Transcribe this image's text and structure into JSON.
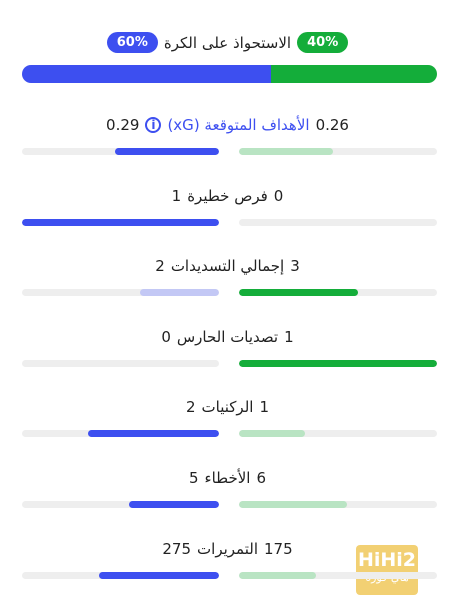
{
  "possession": {
    "label": "الاستحواذ على الكرة",
    "left_value": 60,
    "left_label": "60%",
    "right_value": 40,
    "right_label": "40%",
    "left_color": "#3d4ff0",
    "right_color": "#14ad3a"
  },
  "stats": [
    {
      "label": "الأهداف المتوقعة (xG)",
      "label_color": "#3d4ff0",
      "info_icon": true,
      "right": 0.26,
      "left": 0.29,
      "left_color": "#3d4ff0",
      "right_color": "#b9e4c3"
    },
    {
      "label": "فرص خطيرة",
      "right": 0,
      "left": 1,
      "left_color": "#3d4ff0",
      "right_color": "#b9e4c3"
    },
    {
      "label": "إجمالي التسديدات",
      "right": 3,
      "left": 2,
      "left_color": "#c3c8f5",
      "right_color": "#14ad3a"
    },
    {
      "label": "تصديات الحارس",
      "right": 1,
      "left": 0,
      "left_color": "#c3c8f5",
      "right_color": "#14ad3a"
    },
    {
      "label": "الركنيات",
      "right": 1,
      "left": 2,
      "left_color": "#3d4ff0",
      "right_color": "#b9e4c3"
    },
    {
      "label": "الأخطاء",
      "right": 6,
      "left": 5,
      "left_color": "#3d4ff0",
      "right_color": "#b9e4c3"
    },
    {
      "label": "التمريرات",
      "right": 175,
      "left": 275,
      "left_color": "#3d4ff0",
      "right_color": "#b9e4c3"
    }
  ],
  "watermark": {
    "brand": "HiHi2",
    "subtitle": "هاي كورة"
  }
}
